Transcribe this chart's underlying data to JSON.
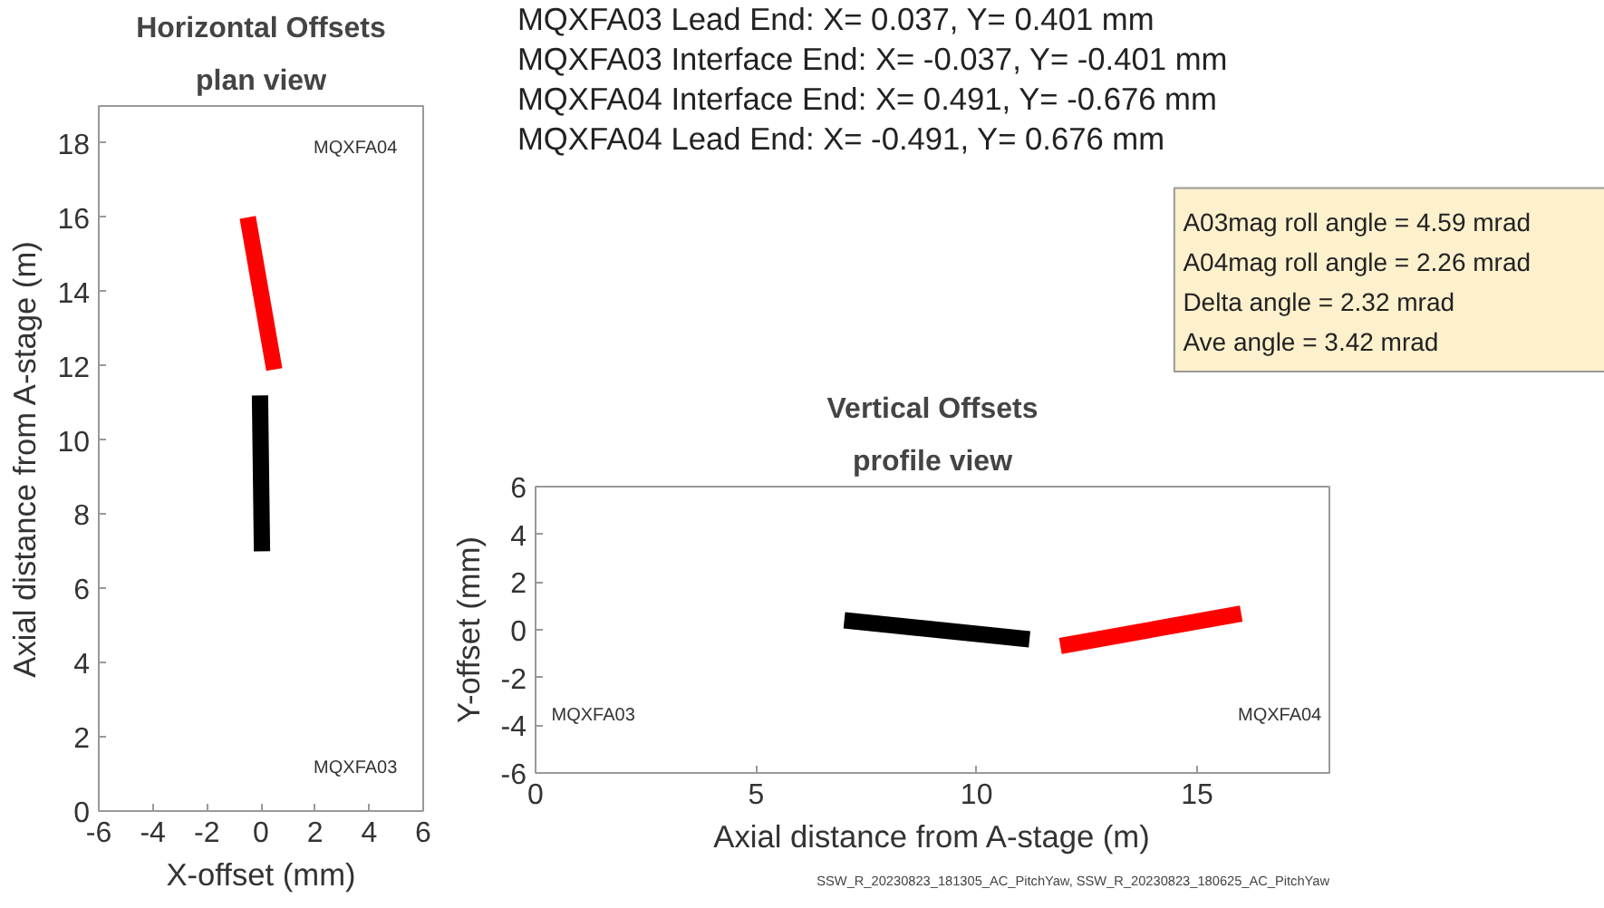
{
  "chart_data": [
    {
      "type": "line",
      "title": "Horizontal Offsets",
      "subtitle": "plan view",
      "xlabel": "X-offset (mm)",
      "ylabel": "Axial distance from A-stage (m)",
      "xlim": [
        -6,
        6
      ],
      "xticks": [
        -6,
        -4,
        -2,
        0,
        2,
        4,
        6
      ],
      "ylim": [
        0,
        19
      ],
      "yticks": [
        0,
        2,
        4,
        6,
        8,
        10,
        12,
        14,
        16,
        18
      ],
      "grid": false,
      "marker": "none",
      "line_style": "solid",
      "series": [
        {
          "color": "#000000",
          "x": [
            0.037,
            -0.037
          ],
          "values": [
            7,
            11.2
          ]
        },
        {
          "color": "#ff0000",
          "x": [
            0.491,
            -0.491
          ],
          "values": [
            11.9,
            16
          ]
        }
      ],
      "annotations": [
        "MQXFA04",
        "MQXFA03"
      ]
    },
    {
      "type": "other",
      "annotations": [
        "MQXFA03 Lead End: X= 0.037, Y= 0.401  mm",
        "MQXFA03 Interface End: X= -0.037, Y= -0.401  mm",
        "MQXFA04 Interface End: X= 0.491, Y= -0.676  mm",
        "MQXFA04 Lead End: X= -0.491, Y= 0.676  mm"
      ]
    },
    {
      "type": "other",
      "annotations": [
        "A03mag roll angle = 4.59 mrad",
        "A04mag roll angle = 2.26 mrad",
        "Delta angle = 2.32 mrad",
        "Ave angle = 3.42 mrad"
      ]
    },
    {
      "type": "line",
      "title": "Vertical Offsets",
      "subtitle": "profile view",
      "xlabel": "Axial distance from A-stage (m)",
      "ylabel": "Y-offset (mm)",
      "xlim": [
        0,
        18
      ],
      "xticks": [
        0,
        5,
        10,
        15
      ],
      "ylim": [
        -6,
        6
      ],
      "yticks": [
        -6,
        -4,
        -2,
        0,
        2,
        4,
        6
      ],
      "grid": false,
      "marker": "none",
      "line_style": "solid",
      "series": [
        {
          "color": "#000000",
          "x": [
            7,
            11.2
          ],
          "values": [
            0.401,
            -0.401
          ]
        },
        {
          "color": "#ff0000",
          "x": [
            11.9,
            16
          ],
          "values": [
            -0.676,
            0.676
          ]
        }
      ],
      "annotations": [
        "MQXFA03",
        "MQXFA04",
        "SSW_R_20230823_181305_AC_PitchYaw, SSW_R_20230823_180625_AC_PitchYaw"
      ]
    }
  ]
}
